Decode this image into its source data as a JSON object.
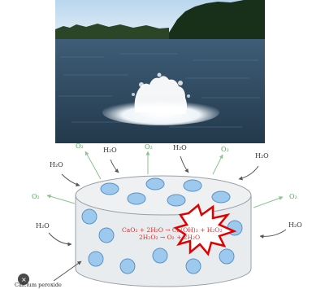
{
  "photo": {
    "subject": "lake-aerator-fountain",
    "colors": {
      "sky": "#cfe4f4",
      "forest": "#1e3a1c",
      "water": "#2c4a63",
      "foam": "#f4f8fb"
    }
  },
  "diagram": {
    "molecule_labels": {
      "water": "H₂O",
      "oxygen": "O₂"
    },
    "equations": {
      "line1": "CaO₂ + 2H₂O → Ca(OH)₂ + H₂O₂",
      "line2": "2H₂O₂ → O₂ + 2H₂O"
    },
    "legend_label": "Calcium peroxide",
    "colors": {
      "water_label": "#333333",
      "oxygen_label": "#4caf50",
      "equation": "#d32f2f",
      "cylinder_fill": "#e9ecef",
      "cylinder_stroke": "#9aa0a6",
      "granule_fill": "#9ec9ee",
      "granule_stroke": "#5a92c4",
      "burst_fill": "#ffffff",
      "burst_stroke": "#e00000"
    }
  }
}
